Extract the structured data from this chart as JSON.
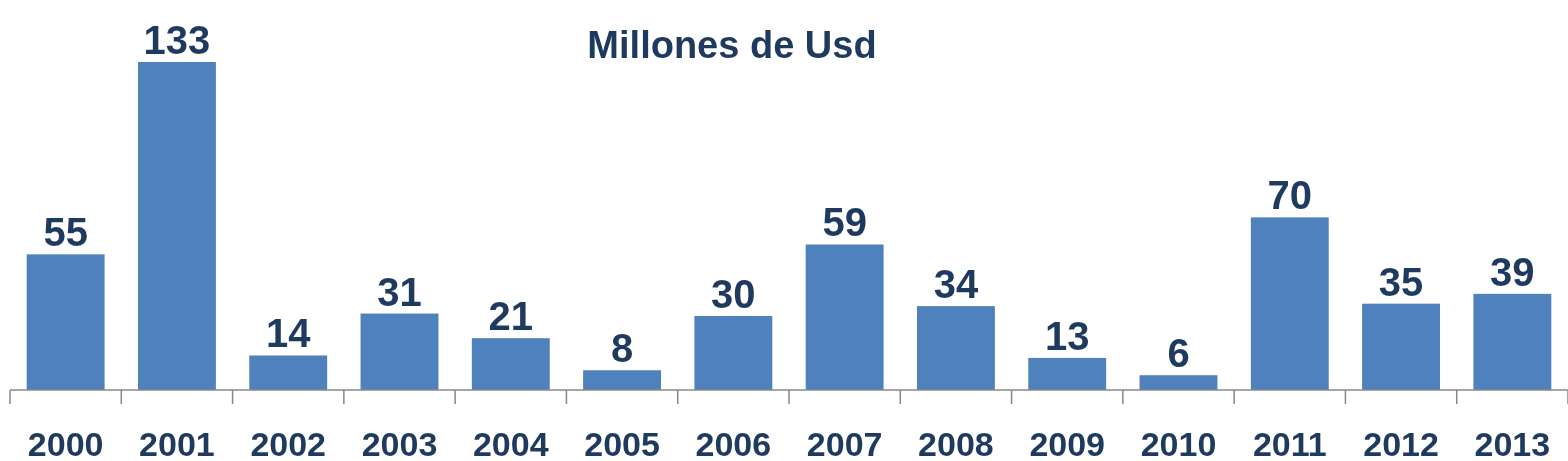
{
  "chart_data": {
    "type": "bar",
    "title": "Millones de Usd",
    "categories": [
      "2000",
      "2001",
      "2002",
      "2003",
      "2004",
      "2005",
      "2006",
      "2007",
      "2008",
      "2009",
      "2010",
      "2011",
      "2012",
      "2013"
    ],
    "values": [
      55,
      133,
      14,
      31,
      21,
      8,
      30,
      59,
      34,
      13,
      6,
      70,
      35,
      39
    ],
    "color": "#4f81bd",
    "data_labels": true
  }
}
